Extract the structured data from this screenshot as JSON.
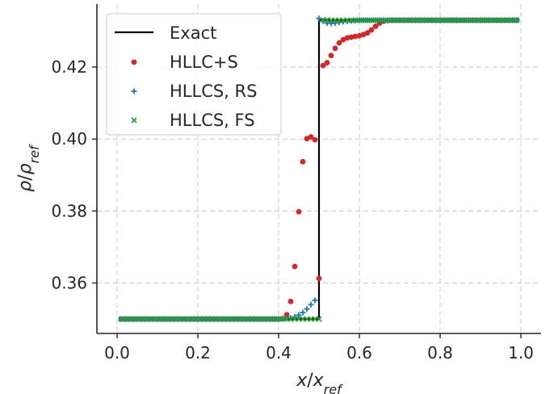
{
  "chart_data": {
    "type": "line",
    "xlabel": {
      "base": "x",
      "sep": "/",
      "base2": "x",
      "sub2": "ref"
    },
    "ylabel": {
      "base": "ρ",
      "sep": "/",
      "base2": "ρ",
      "sub2": "ref"
    },
    "xlim": [
      -0.05,
      1.05
    ],
    "ylim": [
      0.346,
      0.4375
    ],
    "xticks": [
      0.0,
      0.2,
      0.4,
      0.6,
      0.8,
      1.0
    ],
    "xtick_labels": [
      "0.0",
      "0.2",
      "0.4",
      "0.6",
      "0.8",
      "1.0"
    ],
    "yticks": [
      0.36,
      0.38,
      0.4,
      0.42
    ],
    "ytick_labels": [
      "0.36",
      "0.38",
      "0.40",
      "0.42"
    ],
    "grid": true,
    "legend_position": "top-left",
    "series": [
      {
        "name": "Exact",
        "style": "line",
        "color": "#000000",
        "x": [
          0.01,
          0.5,
          0.5,
          0.99
        ],
        "y": [
          0.35,
          0.35,
          0.433,
          0.433
        ]
      },
      {
        "name": "HLLC+S",
        "style": "dot",
        "color": "#d62728",
        "x": [
          0.01,
          0.02,
          0.03,
          0.04,
          0.05,
          0.06,
          0.07,
          0.08,
          0.09,
          0.1,
          0.11,
          0.12,
          0.13,
          0.14,
          0.15,
          0.16,
          0.17,
          0.18,
          0.19,
          0.2,
          0.21,
          0.22,
          0.23,
          0.24,
          0.25,
          0.26,
          0.27,
          0.28,
          0.29,
          0.3,
          0.31,
          0.32,
          0.33,
          0.34,
          0.35,
          0.36,
          0.37,
          0.38,
          0.39,
          0.4,
          0.41,
          0.42,
          0.43,
          0.44,
          0.45,
          0.46,
          0.47,
          0.48,
          0.49,
          0.5,
          0.51,
          0.52,
          0.53,
          0.54,
          0.55,
          0.56,
          0.57,
          0.58,
          0.59,
          0.6,
          0.61,
          0.62,
          0.63,
          0.64,
          0.65,
          0.66,
          0.67,
          0.68,
          0.69,
          0.7,
          0.71,
          0.72,
          0.73,
          0.74,
          0.75,
          0.76,
          0.77,
          0.78,
          0.79,
          0.8,
          0.81,
          0.82,
          0.83,
          0.84,
          0.85,
          0.86,
          0.87,
          0.88,
          0.89,
          0.9,
          0.91,
          0.92,
          0.93,
          0.94,
          0.95,
          0.96,
          0.97,
          0.98,
          0.99
        ],
        "y": [
          0.35,
          0.35,
          0.35,
          0.35,
          0.35,
          0.35,
          0.35,
          0.35,
          0.35,
          0.35,
          0.35,
          0.35,
          0.35,
          0.35,
          0.35,
          0.35,
          0.35,
          0.35,
          0.35,
          0.35,
          0.35,
          0.35,
          0.35,
          0.35,
          0.35,
          0.35,
          0.35,
          0.35,
          0.35,
          0.35,
          0.35,
          0.35,
          0.35,
          0.35,
          0.35,
          0.35,
          0.35,
          0.35,
          0.35,
          0.35,
          0.3501,
          0.3512,
          0.3549,
          0.3646,
          0.3798,
          0.3937,
          0.4001,
          0.4006,
          0.3998,
          0.3613,
          0.4204,
          0.4212,
          0.4232,
          0.4252,
          0.4267,
          0.4276,
          0.4281,
          0.4283,
          0.4285,
          0.4287,
          0.429,
          0.4295,
          0.4303,
          0.4313,
          0.4322,
          0.4327,
          0.4329,
          0.433,
          0.433,
          0.433,
          0.433,
          0.433,
          0.433,
          0.433,
          0.433,
          0.433,
          0.433,
          0.433,
          0.433,
          0.433,
          0.433,
          0.433,
          0.433,
          0.433,
          0.433,
          0.433,
          0.433,
          0.433,
          0.433,
          0.433,
          0.433,
          0.433,
          0.433,
          0.433,
          0.433,
          0.433,
          0.433,
          0.433,
          0.433
        ]
      },
      {
        "name": "HLLCS, RS",
        "style": "plus",
        "color": "#1f77b4",
        "x": [
          0.01,
          0.02,
          0.03,
          0.04,
          0.05,
          0.06,
          0.07,
          0.08,
          0.09,
          0.1,
          0.11,
          0.12,
          0.13,
          0.14,
          0.15,
          0.16,
          0.17,
          0.18,
          0.19,
          0.2,
          0.21,
          0.22,
          0.23,
          0.24,
          0.25,
          0.26,
          0.27,
          0.28,
          0.29,
          0.3,
          0.31,
          0.32,
          0.33,
          0.34,
          0.35,
          0.36,
          0.37,
          0.38,
          0.39,
          0.4,
          0.41,
          0.42,
          0.43,
          0.44,
          0.45,
          0.46,
          0.47,
          0.48,
          0.49,
          0.5,
          0.51,
          0.52,
          0.53,
          0.54,
          0.55,
          0.56,
          0.57,
          0.58,
          0.59,
          0.6,
          0.61,
          0.62,
          0.63,
          0.64,
          0.65,
          0.66,
          0.67,
          0.68,
          0.69,
          0.7,
          0.71,
          0.72,
          0.73,
          0.74,
          0.75,
          0.76,
          0.77,
          0.78,
          0.79,
          0.8,
          0.81,
          0.82,
          0.83,
          0.84,
          0.85,
          0.86,
          0.87,
          0.88,
          0.89,
          0.9,
          0.91,
          0.92,
          0.93,
          0.94,
          0.95,
          0.96,
          0.97,
          0.98,
          0.99
        ],
        "y": [
          0.35,
          0.35,
          0.35,
          0.35,
          0.35,
          0.35,
          0.35,
          0.35,
          0.35,
          0.35,
          0.35,
          0.35,
          0.35,
          0.35,
          0.35,
          0.35,
          0.35,
          0.35,
          0.35,
          0.35,
          0.35,
          0.35,
          0.35,
          0.35,
          0.35,
          0.35,
          0.35,
          0.35,
          0.35,
          0.35,
          0.35,
          0.35,
          0.35,
          0.35,
          0.35,
          0.35,
          0.35,
          0.35,
          0.35,
          0.35,
          0.3501,
          0.3502,
          0.3503,
          0.3506,
          0.3511,
          0.3518,
          0.3528,
          0.354,
          0.3552,
          0.4335,
          0.4328,
          0.4322,
          0.4321,
          0.4322,
          0.4324,
          0.4326,
          0.4327,
          0.4328,
          0.4329,
          0.433,
          0.433,
          0.433,
          0.433,
          0.433,
          0.433,
          0.433,
          0.433,
          0.433,
          0.433,
          0.433,
          0.433,
          0.433,
          0.433,
          0.433,
          0.433,
          0.433,
          0.433,
          0.433,
          0.433,
          0.433,
          0.433,
          0.433,
          0.433,
          0.433,
          0.433,
          0.433,
          0.433,
          0.433,
          0.433,
          0.433,
          0.433,
          0.433,
          0.433,
          0.433,
          0.433,
          0.433,
          0.433,
          0.433,
          0.433
        ]
      },
      {
        "name": "HLLCS, FS",
        "style": "x",
        "color": "#2ca02c",
        "x": [
          0.01,
          0.02,
          0.03,
          0.04,
          0.05,
          0.06,
          0.07,
          0.08,
          0.09,
          0.1,
          0.11,
          0.12,
          0.13,
          0.14,
          0.15,
          0.16,
          0.17,
          0.18,
          0.19,
          0.2,
          0.21,
          0.22,
          0.23,
          0.24,
          0.25,
          0.26,
          0.27,
          0.28,
          0.29,
          0.3,
          0.31,
          0.32,
          0.33,
          0.34,
          0.35,
          0.36,
          0.37,
          0.38,
          0.39,
          0.4,
          0.41,
          0.42,
          0.43,
          0.44,
          0.45,
          0.46,
          0.47,
          0.48,
          0.49,
          0.5,
          0.51,
          0.52,
          0.53,
          0.54,
          0.55,
          0.56,
          0.57,
          0.58,
          0.59,
          0.6,
          0.61,
          0.62,
          0.63,
          0.64,
          0.65,
          0.66,
          0.67,
          0.68,
          0.69,
          0.7,
          0.71,
          0.72,
          0.73,
          0.74,
          0.75,
          0.76,
          0.77,
          0.78,
          0.79,
          0.8,
          0.81,
          0.82,
          0.83,
          0.84,
          0.85,
          0.86,
          0.87,
          0.88,
          0.89,
          0.9,
          0.91,
          0.92,
          0.93,
          0.94,
          0.95,
          0.96,
          0.97,
          0.98,
          0.99
        ],
        "y": [
          0.35,
          0.35,
          0.35,
          0.35,
          0.35,
          0.35,
          0.35,
          0.35,
          0.35,
          0.35,
          0.35,
          0.35,
          0.35,
          0.35,
          0.35,
          0.35,
          0.35,
          0.35,
          0.35,
          0.35,
          0.35,
          0.35,
          0.35,
          0.35,
          0.35,
          0.35,
          0.35,
          0.35,
          0.35,
          0.35,
          0.35,
          0.35,
          0.35,
          0.35,
          0.35,
          0.35,
          0.35,
          0.35,
          0.35,
          0.35,
          0.35,
          0.35,
          0.35,
          0.35,
          0.35,
          0.35,
          0.35,
          0.35,
          0.35,
          0.35,
          0.4331,
          0.4331,
          0.433,
          0.433,
          0.433,
          0.433,
          0.433,
          0.433,
          0.433,
          0.433,
          0.433,
          0.433,
          0.433,
          0.433,
          0.433,
          0.433,
          0.433,
          0.433,
          0.433,
          0.433,
          0.433,
          0.433,
          0.433,
          0.433,
          0.433,
          0.433,
          0.433,
          0.433,
          0.433,
          0.433,
          0.433,
          0.433,
          0.433,
          0.433,
          0.433,
          0.433,
          0.433,
          0.433,
          0.433,
          0.433,
          0.433,
          0.433,
          0.433,
          0.433,
          0.433,
          0.433,
          0.433,
          0.433,
          0.433
        ]
      }
    ]
  }
}
